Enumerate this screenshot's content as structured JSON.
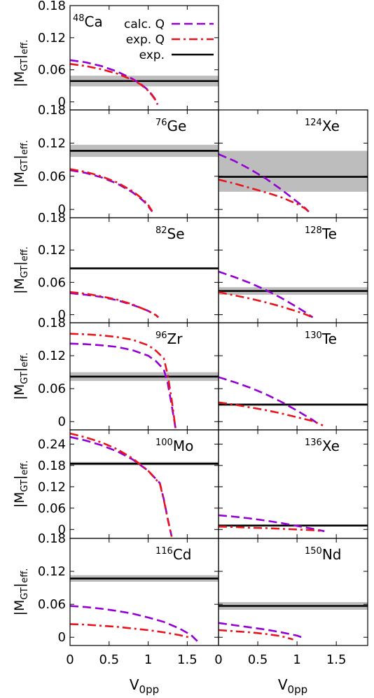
{
  "figure": {
    "ylabel_main": "|M",
    "ylabel_sub1": "GT",
    "ylabel_tail": "|",
    "ylabel_sub2": "eff.",
    "xlabel_main": "V",
    "xlabel_sub": "0pp",
    "legend": {
      "calc": "calc. Q",
      "expq": "exp. Q",
      "exp": "exp."
    },
    "colors": {
      "calc": "#9400d3",
      "expq": "#e8141c",
      "exp": "#000000",
      "band": "#bdbdbd"
    }
  },
  "chart_data": [
    {
      "type": "line",
      "nucleus": {
        "mass": "48",
        "symbol": "Ca"
      },
      "xlim": [
        0,
        1.9
      ],
      "ylim": [
        -0.015,
        0.18
      ],
      "yticks": [
        "0",
        "0.06",
        "0.12",
        "0.18"
      ],
      "yticks_values": [
        0,
        0.06,
        0.12,
        0.18
      ],
      "xticks": [],
      "exp": 0.039,
      "exp_band": [
        0.029,
        0.049
      ],
      "series": [
        {
          "name": "calc. Q",
          "x": [
            0,
            0.2,
            0.4,
            0.6,
            0.8,
            0.9,
            1.0,
            1.05,
            1.1,
            1.12
          ],
          "y": [
            0.078,
            0.074,
            0.067,
            0.057,
            0.043,
            0.034,
            0.022,
            0.013,
            0.003,
            -0.005
          ]
        },
        {
          "name": "exp. Q",
          "x": [
            0,
            0.2,
            0.4,
            0.6,
            0.8,
            0.9,
            1.0,
            1.05,
            1.1,
            1.12
          ],
          "y": [
            0.071,
            0.067,
            0.061,
            0.053,
            0.041,
            0.033,
            0.021,
            0.012,
            0.002,
            -0.005
          ]
        }
      ]
    },
    {
      "type": "line",
      "nucleus": {
        "mass": "76",
        "symbol": "Ge"
      },
      "xlim": [
        0,
        1.9
      ],
      "ylim": [
        -0.015,
        0.18
      ],
      "yticks": [
        "0",
        "0.06",
        "0.12",
        "0.18"
      ],
      "yticks_values": [
        0,
        0.06,
        0.12,
        0.18
      ],
      "xticks": [],
      "exp": 0.106,
      "exp_band": [
        0.095,
        0.117
      ],
      "series": [
        {
          "name": "calc. Q",
          "x": [
            0,
            0.2,
            0.4,
            0.6,
            0.8,
            0.9,
            0.95,
            1.0,
            1.05
          ],
          "y": [
            0.071,
            0.066,
            0.058,
            0.047,
            0.031,
            0.02,
            0.014,
            0.006,
            -0.004
          ]
        },
        {
          "name": "exp. Q",
          "x": [
            0,
            0.2,
            0.4,
            0.6,
            0.8,
            0.9,
            0.95,
            1.0,
            1.05
          ],
          "y": [
            0.073,
            0.068,
            0.06,
            0.049,
            0.033,
            0.022,
            0.016,
            0.008,
            -0.003
          ]
        }
      ]
    },
    {
      "type": "line",
      "nucleus": {
        "mass": "124",
        "symbol": "Xe"
      },
      "xlim": [
        0,
        1.9
      ],
      "ylim": [
        -0.015,
        0.18
      ],
      "yticks": [],
      "yticks_values": [
        0,
        0.06,
        0.12,
        0.18
      ],
      "xticks": [],
      "exp": 0.059,
      "exp_band": [
        0.032,
        0.106
      ],
      "series": [
        {
          "name": "calc. Q",
          "x": [
            0,
            0.2,
            0.4,
            0.6,
            0.8,
            1.0,
            1.1,
            1.15
          ],
          "y": [
            0.1,
            0.088,
            0.073,
            0.056,
            0.036,
            0.014,
            0.003,
            -0.004
          ]
        },
        {
          "name": "exp. Q",
          "x": [
            0,
            0.2,
            0.4,
            0.6,
            0.8,
            1.0,
            1.1,
            1.15
          ],
          "y": [
            0.054,
            0.047,
            0.039,
            0.031,
            0.022,
            0.01,
            0.002,
            -0.004
          ]
        }
      ]
    },
    {
      "type": "line",
      "nucleus": {
        "mass": "82",
        "symbol": "Se"
      },
      "xlim": [
        0,
        1.9
      ],
      "ylim": [
        -0.015,
        0.18
      ],
      "yticks": [
        "0",
        "0.06",
        "0.12",
        "0.18"
      ],
      "yticks_values": [
        0,
        0.06,
        0.12,
        0.18
      ],
      "xticks": [],
      "exp": 0.086,
      "exp_band": [
        0.084,
        0.088
      ],
      "series": [
        {
          "name": "calc. Q",
          "x": [
            0,
            0.2,
            0.4,
            0.6,
            0.8,
            0.9,
            1.0,
            1.1,
            1.13
          ],
          "y": [
            0.04,
            0.037,
            0.033,
            0.027,
            0.018,
            0.013,
            0.007,
            -0.001,
            -0.005
          ]
        },
        {
          "name": "exp. Q",
          "x": [
            0,
            0.2,
            0.4,
            0.6,
            0.8,
            0.9,
            1.0,
            1.1,
            1.13
          ],
          "y": [
            0.042,
            0.039,
            0.034,
            0.028,
            0.019,
            0.013,
            0.007,
            -0.001,
            -0.005
          ]
        }
      ]
    },
    {
      "type": "line",
      "nucleus": {
        "mass": "128",
        "symbol": "Te"
      },
      "xlim": [
        0,
        1.9
      ],
      "ylim": [
        -0.015,
        0.18
      ],
      "yticks": [],
      "yticks_values": [
        0,
        0.06,
        0.12,
        0.18
      ],
      "xticks": [],
      "exp": 0.044,
      "exp_band": [
        0.037,
        0.051
      ],
      "series": [
        {
          "name": "calc. Q",
          "x": [
            0,
            0.2,
            0.4,
            0.6,
            0.8,
            1.0,
            1.1,
            1.2
          ],
          "y": [
            0.08,
            0.07,
            0.059,
            0.046,
            0.031,
            0.014,
            0.005,
            -0.005
          ]
        },
        {
          "name": "exp. Q",
          "x": [
            0,
            0.2,
            0.4,
            0.6,
            0.8,
            1.0,
            1.1,
            1.2
          ],
          "y": [
            0.042,
            0.036,
            0.03,
            0.023,
            0.015,
            0.006,
            0.001,
            -0.005
          ]
        }
      ]
    },
    {
      "type": "line",
      "nucleus": {
        "mass": "96",
        "symbol": "Zr"
      },
      "xlim": [
        0,
        1.9
      ],
      "ylim": [
        -0.015,
        0.18
      ],
      "yticks": [
        "0",
        "0.06",
        "0.12",
        "0.18"
      ],
      "yticks_values": [
        0,
        0.06,
        0.12,
        0.18
      ],
      "xticks": [],
      "exp": 0.082,
      "exp_band": [
        0.074,
        0.09
      ],
      "series": [
        {
          "name": "calc. Q",
          "x": [
            0,
            0.2,
            0.4,
            0.6,
            0.8,
            1.0,
            1.1,
            1.2,
            1.25,
            1.3,
            1.35
          ],
          "y": [
            0.142,
            0.141,
            0.139,
            0.136,
            0.13,
            0.12,
            0.11,
            0.095,
            0.07,
            0.03,
            -0.012
          ]
        },
        {
          "name": "exp. Q",
          "x": [
            0,
            0.2,
            0.4,
            0.6,
            0.8,
            1.0,
            1.1,
            1.2,
            1.25,
            1.3,
            1.35
          ],
          "y": [
            0.16,
            0.159,
            0.157,
            0.154,
            0.149,
            0.139,
            0.129,
            0.115,
            0.085,
            0.04,
            -0.012
          ]
        }
      ]
    },
    {
      "type": "line",
      "nucleus": {
        "mass": "130",
        "symbol": "Te"
      },
      "xlim": [
        0,
        1.9
      ],
      "ylim": [
        -0.015,
        0.18
      ],
      "yticks": [],
      "yticks_values": [
        0,
        0.06,
        0.12,
        0.18
      ],
      "xticks": [],
      "exp": 0.031,
      "exp_band": [
        0.029,
        0.033
      ],
      "series": [
        {
          "name": "calc. Q",
          "x": [
            0,
            0.2,
            0.4,
            0.6,
            0.8,
            1.0,
            1.2,
            1.3
          ],
          "y": [
            0.081,
            0.072,
            0.062,
            0.05,
            0.036,
            0.02,
            0.003,
            -0.007
          ]
        },
        {
          "name": "exp. Q",
          "x": [
            0,
            0.2,
            0.4,
            0.6,
            0.8,
            1.0,
            1.2,
            1.33
          ],
          "y": [
            0.035,
            0.031,
            0.026,
            0.021,
            0.015,
            0.008,
            0.001,
            -0.007
          ]
        }
      ]
    },
    {
      "type": "line",
      "nucleus": {
        "mass": "100",
        "symbol": "Mo"
      },
      "xlim": [
        0,
        1.9
      ],
      "ylim": [
        -0.025,
        0.28
      ],
      "yticks": [
        "0",
        "0.06",
        "0.12",
        "0.18",
        "0.24"
      ],
      "yticks_values": [
        0,
        0.06,
        0.12,
        0.18,
        0.24
      ],
      "xticks": [],
      "exp": 0.185,
      "exp_band": [
        0.18,
        0.19
      ],
      "series": [
        {
          "name": "calc. Q",
          "x": [
            0,
            0.2,
            0.4,
            0.6,
            0.8,
            1.0,
            1.15,
            1.2,
            1.25,
            1.3
          ],
          "y": [
            0.26,
            0.25,
            0.237,
            0.22,
            0.197,
            0.165,
            0.13,
            0.085,
            0.03,
            -0.02
          ]
        },
        {
          "name": "exp. Q",
          "x": [
            0,
            0.2,
            0.4,
            0.6,
            0.8,
            1.0,
            1.15,
            1.2,
            1.25,
            1.3
          ],
          "y": [
            0.27,
            0.259,
            0.245,
            0.226,
            0.2,
            0.165,
            0.128,
            0.083,
            0.029,
            -0.02
          ]
        }
      ]
    },
    {
      "type": "line",
      "nucleus": {
        "mass": "136",
        "symbol": "Xe"
      },
      "xlim": [
        0,
        1.9
      ],
      "ylim": [
        -0.025,
        0.28
      ],
      "yticks": [],
      "yticks_values": [
        0,
        0.06,
        0.12,
        0.18,
        0.24
      ],
      "xticks": [],
      "exp": 0.011,
      "exp_band": [
        0.01,
        0.012
      ],
      "series": [
        {
          "name": "calc. Q",
          "x": [
            0,
            0.2,
            0.4,
            0.6,
            0.8,
            1.0,
            1.2,
            1.35
          ],
          "y": [
            0.04,
            0.036,
            0.031,
            0.025,
            0.018,
            0.01,
            0.002,
            -0.005
          ]
        },
        {
          "name": "exp. Q",
          "x": [
            0,
            0.2,
            0.4,
            0.6,
            0.8,
            1.0,
            1.2,
            1.3
          ],
          "y": [
            0.008,
            0.007,
            0.005,
            0.004,
            0.002,
            0.0,
            -0.002,
            -0.004
          ]
        }
      ]
    },
    {
      "type": "line",
      "nucleus": {
        "mass": "116",
        "symbol": "Cd"
      },
      "xlim": [
        0,
        1.9
      ],
      "ylim": [
        -0.015,
        0.18
      ],
      "yticks": [
        "0",
        "0.06",
        "0.12",
        "0.18"
      ],
      "yticks_values": [
        0,
        0.06,
        0.12,
        0.18
      ],
      "xticks": [
        "0",
        "0.5",
        "1",
        "1.5"
      ],
      "xticks_values": [
        0,
        0.5,
        1,
        1.5
      ],
      "exp": 0.107,
      "exp_band": [
        0.101,
        0.113
      ],
      "series": [
        {
          "name": "calc. Q",
          "x": [
            0,
            0.2,
            0.4,
            0.6,
            0.8,
            1.0,
            1.2,
            1.4,
            1.55,
            1.65
          ],
          "y": [
            0.057,
            0.055,
            0.052,
            0.048,
            0.043,
            0.036,
            0.028,
            0.016,
            0.004,
            -0.01
          ]
        },
        {
          "name": "exp. Q",
          "x": [
            0,
            0.2,
            0.4,
            0.6,
            0.8,
            1.0,
            1.2,
            1.4,
            1.55
          ],
          "y": [
            0.024,
            0.023,
            0.021,
            0.019,
            0.016,
            0.013,
            0.009,
            0.004,
            -0.001
          ]
        }
      ]
    },
    {
      "type": "line",
      "nucleus": {
        "mass": "150",
        "symbol": "Nd"
      },
      "xlim": [
        0,
        1.9
      ],
      "ylim": [
        -0.015,
        0.18
      ],
      "yticks": [],
      "yticks_values": [
        0,
        0.06,
        0.12,
        0.18
      ],
      "xticks": [
        "0",
        "0.5",
        "1",
        "1.5"
      ],
      "xticks_values": [
        0,
        0.5,
        1,
        1.5
      ],
      "exp": 0.057,
      "exp_band": [
        0.05,
        0.064
      ],
      "series": [
        {
          "name": "calc. Q",
          "x": [
            0,
            0.2,
            0.4,
            0.6,
            0.8,
            1.0,
            1.1
          ],
          "y": [
            0.026,
            0.022,
            0.018,
            0.014,
            0.009,
            0.003,
            -0.002
          ]
        },
        {
          "name": "exp. Q",
          "x": [
            0,
            0.2,
            0.4,
            0.6,
            0.8,
            0.95
          ],
          "y": [
            0.013,
            0.011,
            0.009,
            0.006,
            0.002,
            -0.004
          ]
        }
      ]
    }
  ]
}
